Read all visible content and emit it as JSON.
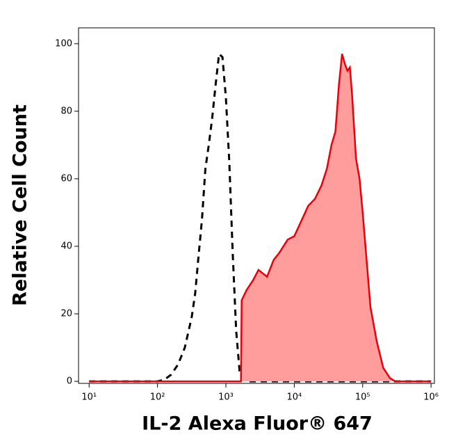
{
  "chart_data": {
    "type": "histogram-overlay",
    "x_label": "IL-2 Alexa Fluor® 647",
    "y_label": "Relative Cell Count",
    "x_scale": "log",
    "xlim": [
      7,
      1120000
    ],
    "xticks": [
      {
        "value": 10,
        "label": "10¹"
      },
      {
        "value": 100,
        "label": "10²"
      },
      {
        "value": 1000,
        "label": "10³"
      },
      {
        "value": 10000,
        "label": "10⁴"
      },
      {
        "value": 100000,
        "label": "10⁵"
      },
      {
        "value": 1000000,
        "label": "10⁶"
      }
    ],
    "ylim": [
      -0.6,
      104.7
    ],
    "yticks": [
      0,
      20,
      40,
      60,
      80,
      100
    ],
    "series": [
      {
        "color": "#000000",
        "linestyle": "dashed",
        "fill": null,
        "x": [
          10,
          100,
          126,
          158,
          200,
          251,
          316,
          355,
          398,
          447,
          501,
          562,
          631,
          708,
          794,
          891,
          1000,
          1122,
          1259,
          1413,
          1585,
          1778,
          1995,
          10000,
          100000,
          1000000
        ],
        "values": [
          0,
          0,
          0.5,
          2,
          5,
          10,
          19,
          26,
          37,
          48,
          63,
          70,
          78,
          88,
          97,
          96,
          84,
          65,
          38,
          15,
          3,
          0.5,
          0,
          0,
          0,
          0
        ]
      },
      {
        "color": "#e8000b",
        "linestyle": "solid",
        "fill": "#ff9c9c",
        "x": [
          10,
          1000,
          1660,
          1700,
          2000,
          2500,
          3000,
          4000,
          5000,
          6000,
          8000,
          10000,
          13000,
          16000,
          20000,
          25000,
          30000,
          35000,
          40000,
          45000,
          50000,
          55000,
          60000,
          65000,
          70000,
          80000,
          90000,
          100000,
          110000,
          130000,
          160000,
          200000,
          250000,
          300000,
          1000000
        ],
        "values": [
          0,
          0,
          0,
          24,
          27,
          30,
          33,
          31,
          36,
          38,
          42,
          43,
          48,
          52,
          54,
          58,
          63,
          70,
          74,
          88,
          97,
          94,
          92,
          93,
          85,
          66,
          60,
          50,
          40,
          22,
          12,
          4,
          1,
          0,
          0
        ]
      }
    ]
  }
}
